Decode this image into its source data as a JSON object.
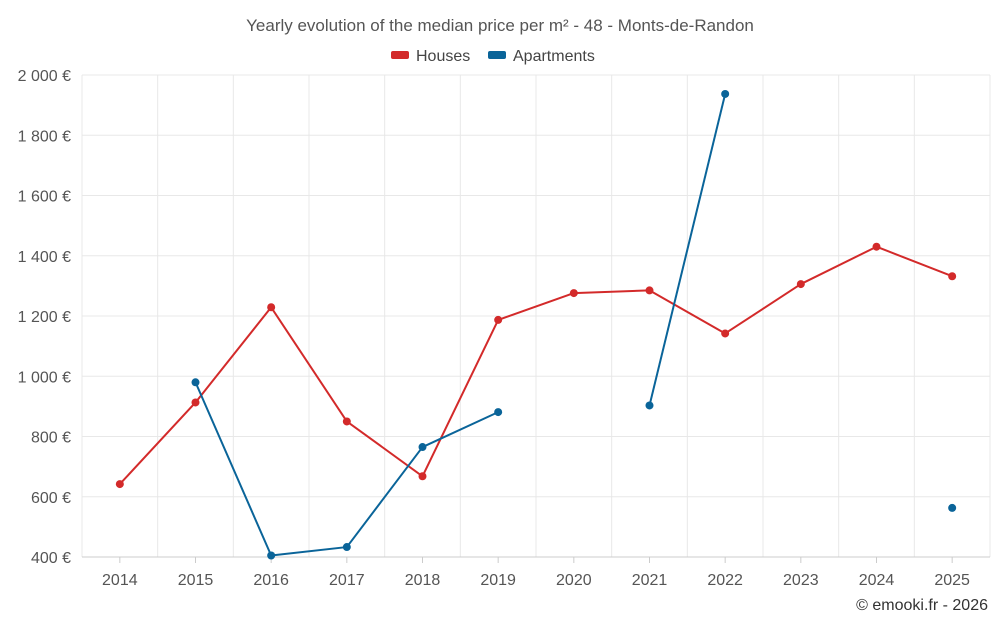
{
  "chart_data": {
    "type": "line",
    "title": "Yearly evolution of the median price per m² - 48 - Monts-de-Randon",
    "categories": [
      "2014",
      "2015",
      "2016",
      "2017",
      "2018",
      "2019",
      "2020",
      "2021",
      "2022",
      "2023",
      "2024",
      "2025"
    ],
    "series": [
      {
        "name": "Houses",
        "color": "#d32a2a",
        "values": [
          642,
          913,
          1229,
          850,
          668,
          1187,
          1276,
          1285,
          1142,
          1306,
          1430,
          1332
        ]
      },
      {
        "name": "Apartments",
        "color": "#0a6499",
        "values": [
          null,
          980,
          405,
          433,
          765,
          881,
          null,
          903,
          1937,
          null,
          null,
          563
        ]
      }
    ],
    "ylim": [
      400,
      2000
    ],
    "yticks": [
      400,
      600,
      800,
      1000,
      1200,
      1400,
      1600,
      1800,
      2000
    ],
    "ytick_labels": [
      "400 €",
      "600 €",
      "800 €",
      "1 000 €",
      "1 200 €",
      "1 400 €",
      "1 600 €",
      "1 800 €",
      "2 000 €"
    ],
    "grid": true,
    "legend_position": "top-center",
    "credit": "© emooki.fr - 2026"
  }
}
